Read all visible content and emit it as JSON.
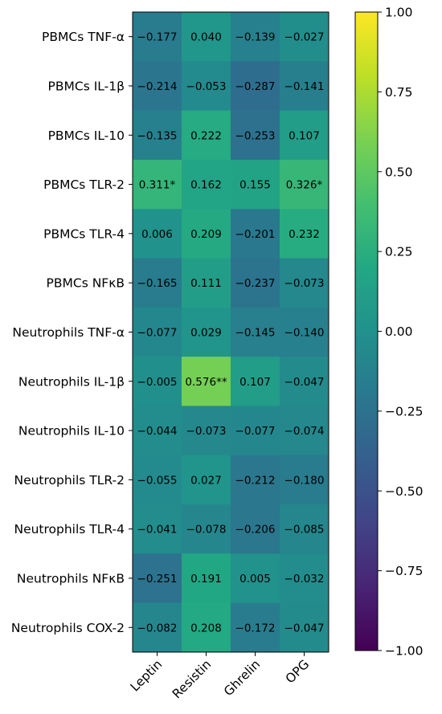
{
  "chart_data": {
    "type": "heatmap",
    "rows": [
      "PBMCs TNF-α",
      "PBMCs IL-1β",
      "PBMCs IL-10",
      "PBMCs TLR-2",
      "PBMCs TLR-4",
      "PBMCs NFκB",
      "Neutrophils TNF-α",
      "Neutrophils IL-1β",
      "Neutrophils IL-10",
      "Neutrophils TLR-2",
      "Neutrophils TLR-4",
      "Neutrophils NFκB",
      "Neutrophils COX-2"
    ],
    "columns": [
      "Leptin",
      "Resistin",
      "Ghrelin",
      "OPG"
    ],
    "values": [
      [
        -0.177,
        0.04,
        -0.139,
        -0.027
      ],
      [
        -0.214,
        -0.053,
        -0.287,
        -0.141
      ],
      [
        -0.135,
        0.222,
        -0.253,
        0.107
      ],
      [
        0.311,
        0.162,
        0.155,
        0.326
      ],
      [
        0.006,
        0.209,
        -0.201,
        0.232
      ],
      [
        -0.165,
        0.111,
        -0.237,
        -0.073
      ],
      [
        -0.077,
        0.029,
        -0.145,
        -0.14
      ],
      [
        -0.005,
        0.576,
        0.107,
        -0.047
      ],
      [
        -0.044,
        -0.073,
        -0.077,
        -0.074
      ],
      [
        -0.055,
        0.027,
        -0.212,
        -0.18
      ],
      [
        -0.041,
        -0.078,
        -0.206,
        -0.085
      ],
      [
        -0.251,
        0.191,
        0.005,
        -0.032
      ],
      [
        -0.082,
        0.208,
        -0.172,
        -0.047
      ]
    ],
    "cell_labels": [
      [
        "−0.177",
        "0.040",
        "−0.139",
        "−0.027"
      ],
      [
        "−0.214",
        "−0.053",
        "−0.287",
        "−0.141"
      ],
      [
        "−0.135",
        "0.222",
        "−0.253",
        "0.107"
      ],
      [
        "0.311*",
        "0.162",
        "0.155",
        "0.326*"
      ],
      [
        "0.006",
        "0.209",
        "−0.201",
        "0.232"
      ],
      [
        "−0.165",
        "0.111",
        "−0.237",
        "−0.073"
      ],
      [
        "−0.077",
        "0.029",
        "−0.145",
        "−0.140"
      ],
      [
        "−0.005",
        "0.576**",
        "0.107",
        "−0.047"
      ],
      [
        "−0.044",
        "−0.073",
        "−0.077",
        "−0.074"
      ],
      [
        "−0.055",
        "0.027",
        "−0.212",
        "−0.180"
      ],
      [
        "−0.041",
        "−0.078",
        "−0.206",
        "−0.085"
      ],
      [
        "−0.251",
        "0.191",
        "0.005",
        "−0.032"
      ],
      [
        "−0.082",
        "0.208",
        "−0.172",
        "−0.047"
      ]
    ],
    "colorbar": {
      "colormap": "viridis",
      "range": [
        -1.0,
        1.0
      ],
      "ticks": [
        1.0,
        0.75,
        0.5,
        0.25,
        0.0,
        -0.25,
        -0.5,
        -0.75,
        -1.0
      ],
      "tick_labels": [
        "1.00",
        "0.75",
        "0.50",
        "0.25",
        "0.00",
        "−0.25",
        "−0.50",
        "−0.75",
        "−1.00"
      ]
    },
    "colors": {
      "text": "#000000",
      "axis": "#000000",
      "background": "#ffffff"
    }
  }
}
